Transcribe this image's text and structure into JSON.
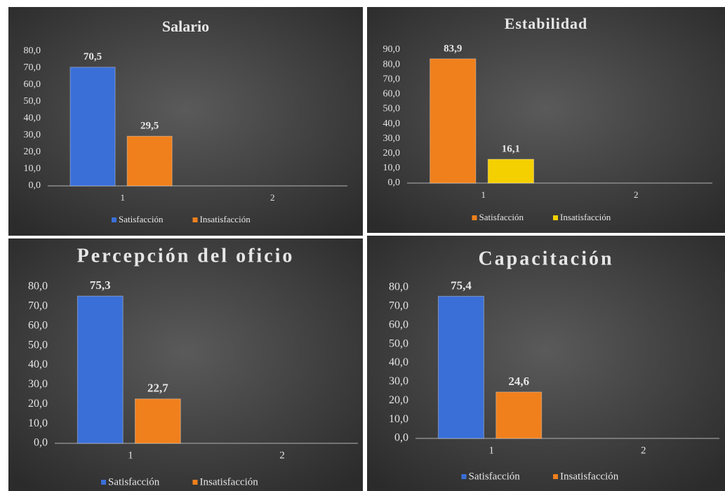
{
  "chart_data": [
    {
      "type": "bar",
      "title": "Salario",
      "categories": [
        "1",
        "2"
      ],
      "series": [
        {
          "name": "Satisfacción",
          "color": "#3a6fd8",
          "values": [
            70.5,
            null
          ],
          "value_labels": [
            "70,5",
            null
          ]
        },
        {
          "name": "Insatisfacción",
          "color": "#f0801c",
          "values": [
            29.5,
            null
          ],
          "value_labels": [
            "29,5",
            null
          ]
        }
      ],
      "ylim": [
        0,
        80
      ],
      "yticks": [
        {
          "value": 0,
          "label": "0,0"
        },
        {
          "value": 10,
          "label": "10,0"
        },
        {
          "value": 20,
          "label": "20,0"
        },
        {
          "value": 30,
          "label": "30,0"
        },
        {
          "value": 40,
          "label": "40,0"
        },
        {
          "value": 50,
          "label": "50,0"
        },
        {
          "value": 60,
          "label": "60,0"
        },
        {
          "value": 70,
          "label": "70,0"
        },
        {
          "value": 80,
          "label": "80,0"
        }
      ],
      "legend": "bottom"
    },
    {
      "type": "bar",
      "title": "Estabilidad",
      "categories": [
        "1",
        "2"
      ],
      "series": [
        {
          "name": "Satisfacción",
          "color": "#f0801c",
          "values": [
            83.9,
            null
          ],
          "value_labels": [
            "83,9",
            null
          ]
        },
        {
          "name": "Insatisfacción",
          "color": "#f5d000",
          "values": [
            16.1,
            null
          ],
          "value_labels": [
            "16,1",
            null
          ]
        }
      ],
      "ylim": [
        0,
        90
      ],
      "yticks": [
        {
          "value": 0,
          "label": "0,0"
        },
        {
          "value": 10,
          "label": "10,0"
        },
        {
          "value": 20,
          "label": "20,0"
        },
        {
          "value": 30,
          "label": "30,0"
        },
        {
          "value": 40,
          "label": "40,0"
        },
        {
          "value": 50,
          "label": "50,0"
        },
        {
          "value": 60,
          "label": "60,0"
        },
        {
          "value": 70,
          "label": "70,0"
        },
        {
          "value": 80,
          "label": "80,0"
        },
        {
          "value": 90,
          "label": "90,0"
        }
      ],
      "legend": "bottom"
    },
    {
      "type": "bar",
      "title": "Percepción del oficio",
      "categories": [
        "1",
        "2"
      ],
      "series": [
        {
          "name": "Satisfacción",
          "color": "#3a6fd8",
          "values": [
            75.3,
            null
          ],
          "value_labels": [
            "75,3",
            null
          ]
        },
        {
          "name": "Insatisfacción",
          "color": "#f0801c",
          "values": [
            22.7,
            null
          ],
          "value_labels": [
            "22,7",
            null
          ]
        }
      ],
      "ylim": [
        0,
        80
      ],
      "yticks": [
        {
          "value": 0,
          "label": "0,0"
        },
        {
          "value": 10,
          "label": "10,0"
        },
        {
          "value": 20,
          "label": "20,0"
        },
        {
          "value": 30,
          "label": "30,0"
        },
        {
          "value": 40,
          "label": "40,0"
        },
        {
          "value": 50,
          "label": "50,0"
        },
        {
          "value": 60,
          "label": "60,0"
        },
        {
          "value": 70,
          "label": "70,0"
        },
        {
          "value": 80,
          "label": "80,0"
        }
      ],
      "legend": "bottom"
    },
    {
      "type": "bar",
      "title": "Capacitación",
      "categories": [
        "1",
        "2"
      ],
      "series": [
        {
          "name": "Satisfacción",
          "color": "#3a6fd8",
          "values": [
            75.4,
            null
          ],
          "value_labels": [
            "75,4",
            null
          ]
        },
        {
          "name": "Insatisfacción",
          "color": "#f0801c",
          "values": [
            24.6,
            null
          ],
          "value_labels": [
            "24,6",
            null
          ]
        }
      ],
      "ylim": [
        0,
        80
      ],
      "yticks": [
        {
          "value": 0,
          "label": "0,0"
        },
        {
          "value": 10,
          "label": "10,0"
        },
        {
          "value": 20,
          "label": "20,0"
        },
        {
          "value": 30,
          "label": "30,0"
        },
        {
          "value": 40,
          "label": "40,0"
        },
        {
          "value": 50,
          "label": "50,0"
        },
        {
          "value": 60,
          "label": "60,0"
        },
        {
          "value": 70,
          "label": "70,0"
        },
        {
          "value": 80,
          "label": "80,0"
        }
      ],
      "legend": "bottom"
    }
  ]
}
